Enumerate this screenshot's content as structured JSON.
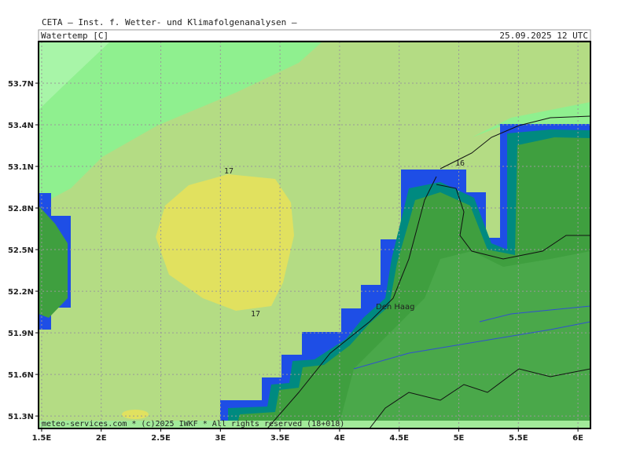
{
  "header": {
    "source": "CETA — Inst. f. Wetter- und Klimafolgenanalysen —",
    "parameter": "Watertemp [C]",
    "valid_time": "25.09.2025 12 UTC"
  },
  "map": {
    "xlim": [
      1.474,
      6.105
    ],
    "ylim": [
      51.21,
      54.0
    ],
    "xticks": [
      {
        "value": 1.5,
        "label": "1.5E"
      },
      {
        "value": 2,
        "label": "2E"
      },
      {
        "value": 2.5,
        "label": "2.5E"
      },
      {
        "value": 3,
        "label": "3E"
      },
      {
        "value": 3.5,
        "label": "3.5E"
      },
      {
        "value": 4,
        "label": "4E"
      },
      {
        "value": 4.5,
        "label": "4.5E"
      },
      {
        "value": 5,
        "label": "5E"
      },
      {
        "value": 5.5,
        "label": "5.5E"
      },
      {
        "value": 6,
        "label": "6E"
      }
    ],
    "yticks": [
      {
        "value": 51.3,
        "label": "51.3N"
      },
      {
        "value": 51.6,
        "label": "51.6N"
      },
      {
        "value": 51.9,
        "label": "51.9N"
      },
      {
        "value": 52.2,
        "label": "52.2N"
      },
      {
        "value": 52.5,
        "label": "52.5N"
      },
      {
        "value": 52.8,
        "label": "52.8N"
      },
      {
        "value": 53.1,
        "label": "53.1N"
      },
      {
        "value": 53.4,
        "label": "53.4N"
      },
      {
        "value": 53.7,
        "label": "53.7N"
      }
    ],
    "grid": true,
    "contour_labels": [
      "17",
      "17",
      "16"
    ],
    "place_labels": [
      "Den Haag"
    ],
    "footer": "meteo-services.com * (c)2025 IWKF * All rights reserved (18+018)"
  }
}
